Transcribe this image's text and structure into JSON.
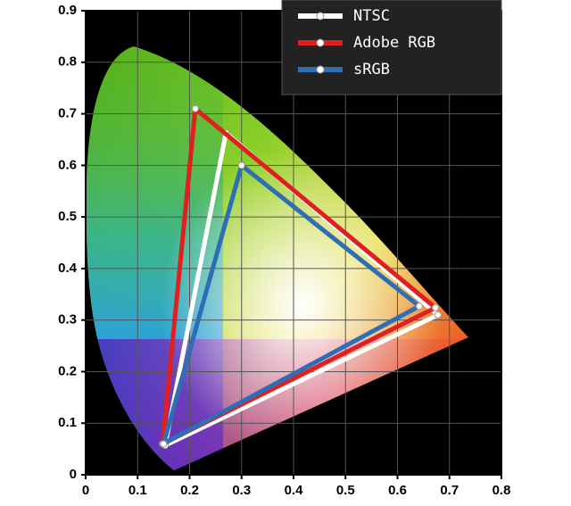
{
  "chart_data": {
    "type": "line",
    "xlim": [
      0,
      0.8
    ],
    "ylim": [
      0,
      0.9
    ],
    "xticks": [
      0,
      0.1,
      0.2,
      0.3,
      0.4,
      0.5,
      0.6,
      0.7,
      0.8
    ],
    "yticks": [
      0,
      0.1,
      0.2,
      0.3,
      0.4,
      0.5,
      0.6,
      0.7,
      0.8,
      0.9
    ],
    "grid": true,
    "legend": "upper right",
    "series": [
      {
        "name": "NTSC",
        "color": "#ffffff",
        "x": [
          0.27,
          0.678,
          0.153
        ],
        "values": [
          0.663,
          0.31,
          0.057
        ]
      },
      {
        "name": "Adobe RGB",
        "color": "#e02020",
        "x": [
          0.211,
          0.673,
          0.148
        ],
        "values": [
          0.71,
          0.324,
          0.06
        ]
      },
      {
        "name": "sRGB",
        "color": "#2f6db5",
        "x": [
          0.3,
          0.642,
          0.15
        ],
        "values": [
          0.6,
          0.327,
          0.06
        ]
      }
    ]
  }
}
